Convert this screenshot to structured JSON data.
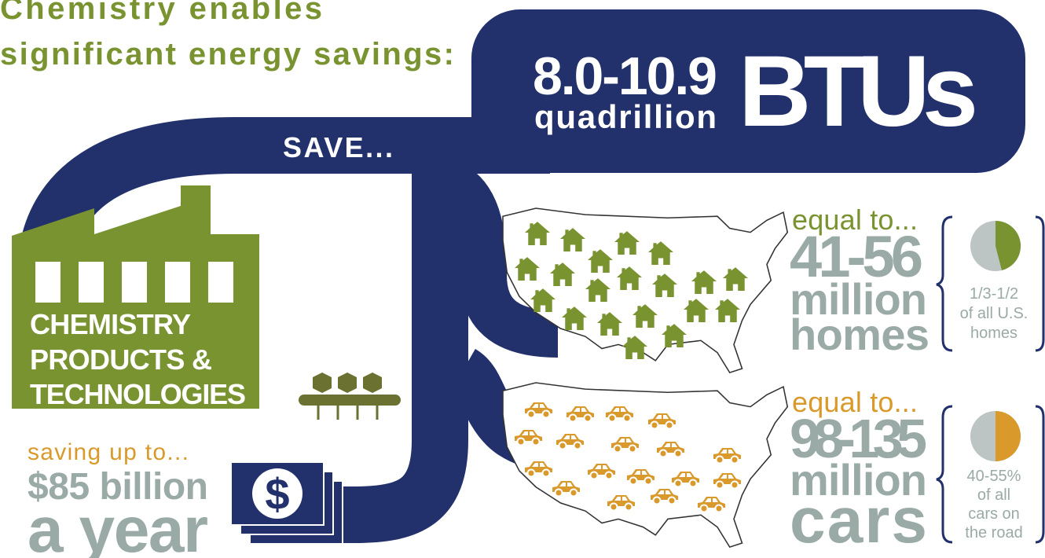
{
  "title_lines": [
    "Chemistry enables",
    "significant energy savings:"
  ],
  "banner": {
    "value": "8.0-10.9",
    "unit": "quadrillion",
    "label": "BTUs"
  },
  "save": "SAVE...",
  "factory": {
    "lines": [
      "CHEMISTRY",
      "PRODUCTS &",
      "TECHNOLOGIES"
    ]
  },
  "savings": {
    "intro": "saving up to...",
    "lines": [
      "$85 billion",
      "a year"
    ],
    "icon_symbol": "$"
  },
  "homes": {
    "intro": "equal to...",
    "lines": [
      "41-56",
      "million",
      "homes"
    ],
    "share": [
      "1/3-1/2",
      "of all U.S.",
      "homes"
    ]
  },
  "cars": {
    "intro": "equal to...",
    "lines": [
      "98-135",
      "million",
      "cars"
    ],
    "share": [
      "40-55%",
      "of all",
      "cars on",
      "the road"
    ]
  }
}
